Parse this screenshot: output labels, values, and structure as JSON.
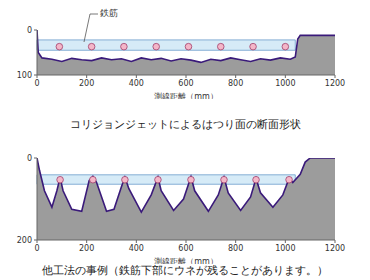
{
  "chart_data": [
    {
      "type": "area",
      "title": "コリジョンジェットによるはつり面の断面形状",
      "annotation": "鉄筋",
      "xlabel": "測線距離（mm）",
      "x": [
        0,
        5,
        20,
        60,
        100,
        140,
        180,
        220,
        260,
        300,
        340,
        380,
        420,
        460,
        500,
        540,
        580,
        620,
        660,
        700,
        740,
        780,
        820,
        860,
        900,
        940,
        980,
        1020,
        1040,
        1050,
        1060,
        1200
      ],
      "values": [
        0,
        50,
        62,
        65,
        70,
        63,
        66,
        68,
        62,
        66,
        64,
        70,
        62,
        66,
        63,
        69,
        64,
        67,
        72,
        65,
        68,
        62,
        66,
        70,
        64,
        67,
        62,
        65,
        60,
        20,
        12,
        12
      ],
      "color": "#3a1a7a",
      "rebar_x": [
        90,
        220,
        350,
        480,
        610,
        740,
        870,
        1000
      ],
      "rebar_depth": [
        37,
        37,
        37,
        37,
        37,
        37,
        37,
        37
      ],
      "rebar_band": [
        22,
        45
      ],
      "rebar_band_x": [
        0,
        1040
      ],
      "xlim": [
        0,
        1200
      ],
      "xticks": [
        0,
        200,
        400,
        600,
        800,
        1000,
        1200
      ],
      "ylim": [
        0,
        100
      ],
      "yticks": [
        0,
        100
      ]
    },
    {
      "type": "area",
      "title": "他工法の事例（鉄筋下部にウネが残ることがあります。）",
      "xlabel": "測線距離（mm）",
      "x": [
        0,
        10,
        30,
        60,
        80,
        93,
        105,
        140,
        180,
        210,
        225,
        240,
        280,
        310,
        340,
        354,
        370,
        420,
        460,
        487,
        500,
        550,
        590,
        620,
        635,
        690,
        730,
        753,
        770,
        820,
        860,
        882,
        900,
        950,
        990,
        1015,
        1030,
        1060,
        1080,
        1100,
        1200
      ],
      "values": [
        0,
        30,
        80,
        120,
        80,
        48,
        80,
        125,
        130,
        55,
        45,
        60,
        130,
        125,
        70,
        47,
        75,
        132,
        90,
        47,
        80,
        128,
        100,
        46,
        80,
        130,
        90,
        47,
        85,
        128,
        95,
        50,
        85,
        120,
        90,
        50,
        60,
        40,
        10,
        0,
        0
      ],
      "color": "#3a1a7a",
      "rebar_x": [
        93,
        225,
        354,
        487,
        620,
        753,
        882,
        1015
      ],
      "rebar_depth": [
        53,
        53,
        53,
        53,
        53,
        53,
        53,
        53
      ],
      "rebar_band": [
        41,
        64
      ],
      "rebar_band_x": [
        0,
        1040
      ],
      "xlim": [
        0,
        1200
      ],
      "xticks": [
        0,
        200,
        400,
        600,
        800,
        1000,
        1200
      ],
      "ylim": [
        0,
        200
      ],
      "yticks": [
        0,
        200
      ]
    }
  ]
}
